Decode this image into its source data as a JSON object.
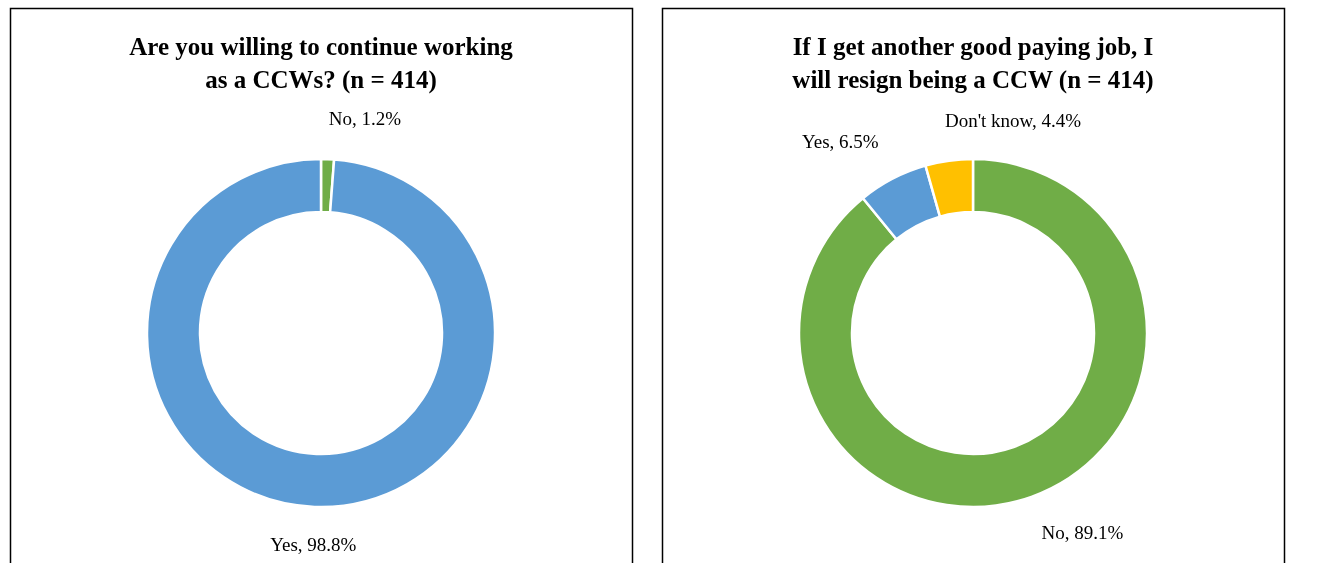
{
  "chart_data": [
    {
      "type": "donut",
      "title": "Are you willing to continue working as a CCWs? (n = 414)",
      "categories": [
        "No",
        "Yes"
      ],
      "values": [
        1.2,
        98.8
      ],
      "colors": [
        "#70ad47",
        "#5b9bd5"
      ],
      "value_labels": [
        "1.2%",
        "98.8%"
      ]
    },
    {
      "type": "donut",
      "title": "If I get another good paying job, I will resign being a CCW (n = 414)",
      "categories": [
        "No",
        "Yes",
        "Don't know"
      ],
      "values": [
        89.1,
        6.5,
        4.4
      ],
      "colors": [
        "#70ad47",
        "#5b9bd5",
        "#ffc000"
      ],
      "value_labels": [
        "89.1%",
        "6.5%",
        "4.4%"
      ]
    }
  ]
}
